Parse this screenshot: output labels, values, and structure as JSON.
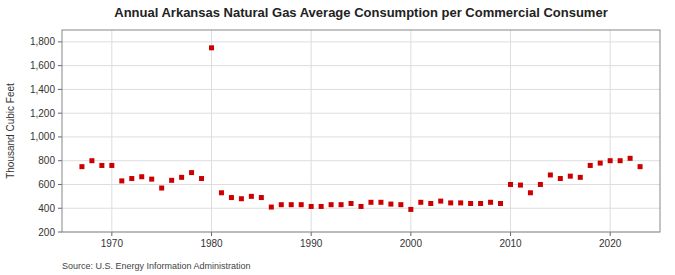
{
  "chart_data": {
    "type": "scatter",
    "title": "Annual Arkansas Natural Gas Average Consumption per Commercial Consumer",
    "y_label": "Thousand Cubic Feet",
    "source": "Source: U.S. Energy Information Administration",
    "x": [
      1967,
      1968,
      1969,
      1970,
      1971,
      1972,
      1973,
      1974,
      1975,
      1976,
      1977,
      1978,
      1979,
      1980,
      1981,
      1982,
      1983,
      1984,
      1985,
      1986,
      1987,
      1988,
      1989,
      1990,
      1991,
      1992,
      1993,
      1994,
      1995,
      1996,
      1997,
      1998,
      1999,
      2000,
      2001,
      2002,
      2003,
      2004,
      2005,
      2006,
      2007,
      2008,
      2009,
      2010,
      2011,
      2012,
      2013,
      2014,
      2015,
      2016,
      2017,
      2018,
      2019,
      2020,
      2021,
      2022,
      2023
    ],
    "values": [
      750,
      800,
      760,
      760,
      630,
      650,
      665,
      645,
      570,
      635,
      660,
      700,
      650,
      1750,
      530,
      490,
      480,
      500,
      490,
      410,
      430,
      430,
      430,
      415,
      415,
      430,
      430,
      440,
      415,
      450,
      450,
      435,
      430,
      390,
      450,
      440,
      460,
      445,
      445,
      440,
      440,
      450,
      440,
      600,
      595,
      530,
      600,
      680,
      650,
      670,
      660,
      760,
      780,
      800,
      800,
      820,
      750
    ],
    "color": "#cc0000",
    "marker": "square",
    "xlim": [
      1965,
      2025
    ],
    "xticks": [
      1970,
      1980,
      1990,
      2000,
      2010,
      2020
    ],
    "ylim": [
      200,
      1900
    ],
    "yticks": [
      200,
      400,
      600,
      800,
      {
        "value": 1000,
        "label": "1,000"
      },
      {
        "value": 1200,
        "label": "1,200"
      },
      {
        "value": 1400,
        "label": "1,400"
      },
      {
        "value": 1600,
        "label": "1,600"
      },
      {
        "value": 1800,
        "label": "1,800"
      }
    ],
    "grid": true
  }
}
